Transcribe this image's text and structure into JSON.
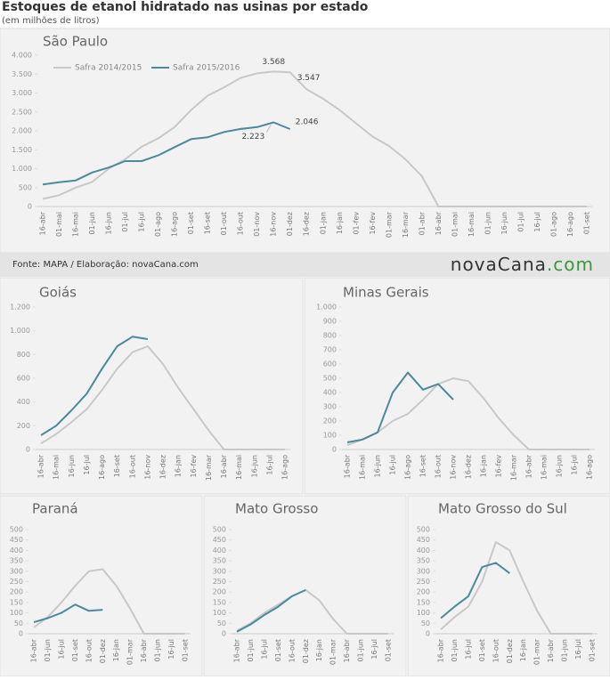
{
  "title": "Estoques de etanol hidratado nas usinas por estado",
  "subtitle": "(em milhões de litros)",
  "source": "Fonte: MAPA / Elaboração: novaCana.com",
  "logo": {
    "name": "novaCana",
    "domain": ".com"
  },
  "chart_data": [
    {
      "type": "line",
      "title": "São Paulo",
      "legend": "upper left",
      "categories": [
        "16-abr",
        "01-mai",
        "16-mai",
        "01-jun",
        "16-jun",
        "01-jul",
        "16-jul",
        "01-ago",
        "16-ago",
        "01-set",
        "16-set",
        "01-out",
        "16-out",
        "01-nov",
        "16-nov",
        "01-dez",
        "16-dez",
        "01-jan",
        "16-jan",
        "01-fev",
        "16-fev",
        "01-mar",
        "16-mar",
        "01-abr",
        "16-abr",
        "01-mai",
        "16-mai",
        "01-jun",
        "16-jun",
        "01-jul",
        "16-jul",
        "01-ago",
        "16-ago",
        "01-set"
      ],
      "series": [
        {
          "name": "Safra 2014/2015",
          "color": "#c8c8c8",
          "values": [
            200,
            300,
            500,
            650,
            1000,
            1250,
            1580,
            1800,
            2100,
            2550,
            2930,
            3150,
            3400,
            3520,
            3568,
            3547,
            3100,
            2850,
            2550,
            2200,
            1850,
            1600,
            1250,
            800,
            0,
            0,
            0,
            0,
            0,
            0,
            0,
            0,
            0,
            0
          ],
          "value_labels": [
            null,
            null,
            null,
            null,
            null,
            null,
            null,
            null,
            null,
            null,
            null,
            null,
            null,
            null,
            "3.568",
            "3.547",
            null,
            null,
            null,
            null,
            null,
            null,
            null,
            null,
            null,
            null,
            null,
            null,
            null,
            null,
            null,
            null,
            null,
            null
          ]
        },
        {
          "name": "Safra 2015/2016",
          "color": "#4a8a9a",
          "values": [
            580,
            640,
            690,
            900,
            1030,
            1200,
            1200,
            1350,
            1570,
            1780,
            1830,
            1970,
            2050,
            2100,
            2223,
            2046,
            null,
            null,
            null,
            null,
            null,
            null,
            null,
            null,
            null,
            null,
            null,
            null,
            null,
            null,
            null,
            null,
            null,
            null
          ],
          "value_labels": [
            null,
            null,
            null,
            null,
            null,
            null,
            null,
            null,
            null,
            null,
            null,
            null,
            null,
            null,
            "2.223",
            "2.046",
            null,
            null,
            null,
            null,
            null,
            null,
            null,
            null,
            null,
            null,
            null,
            null,
            null,
            null,
            null,
            null,
            null,
            null
          ]
        }
      ],
      "ylim": [
        0,
        4000
      ],
      "yticks": [
        0,
        500,
        {
          "value": 1000,
          "label": "1.000"
        },
        {
          "value": 1500,
          "label": "1.500"
        },
        {
          "value": 2000,
          "label": "2.000"
        },
        {
          "value": 2500,
          "label": "2.500"
        },
        {
          "value": 3000,
          "label": "3.000"
        },
        {
          "value": 3500,
          "label": "3.500"
        },
        {
          "value": 4000,
          "label": "4.000"
        }
      ]
    },
    {
      "type": "line",
      "title": "Goiás",
      "categories": [
        "16-abr",
        "16-mai",
        "16-jun",
        "16-jul",
        "16-ago",
        "16-set",
        "16-out",
        "16-nov",
        "16-dez",
        "16-jan",
        "16-fev",
        "16-mar",
        "16-abr",
        "16-mai",
        "16-jun",
        "16-jul",
        "16-ago"
      ],
      "series": [
        {
          "color": "#c8c8c8",
          "values": [
            50,
            130,
            230,
            340,
            500,
            680,
            820,
            870,
            720,
            520,
            340,
            160,
            0,
            0,
            0,
            0,
            0
          ]
        },
        {
          "color": "#4a8a9a",
          "values": [
            120,
            200,
            330,
            470,
            680,
            870,
            950,
            930,
            null,
            null,
            null,
            null,
            null,
            null,
            null,
            null,
            null
          ]
        }
      ],
      "ylim": [
        0,
        1200
      ],
      "yticks": [
        0,
        200,
        400,
        600,
        800,
        {
          "value": 1000,
          "label": "1.000"
        },
        {
          "value": 1200,
          "label": "1.200"
        }
      ]
    },
    {
      "type": "line",
      "title": "Minas Gerais",
      "categories": [
        "16-abr",
        "16-mai",
        "16-jun",
        "16-jul",
        "16-ago",
        "16-set",
        "16-out",
        "16-nov",
        "16-dez",
        "16-jan",
        "16-fev",
        "16-mar",
        "16-abr",
        "16-mai",
        "16-jun",
        "16-jul",
        "16-ago"
      ],
      "series": [
        {
          "color": "#c8c8c8",
          "values": [
            30,
            70,
            120,
            200,
            250,
            350,
            460,
            500,
            480,
            360,
            220,
            100,
            0,
            0,
            0,
            0,
            0
          ]
        },
        {
          "color": "#4a8a9a",
          "values": [
            50,
            70,
            120,
            400,
            540,
            420,
            460,
            350,
            null,
            null,
            null,
            null,
            null,
            null,
            null,
            null,
            null
          ]
        }
      ],
      "ylim": [
        0,
        1000
      ],
      "yticks": [
        0,
        100,
        200,
        300,
        400,
        500,
        600,
        700,
        800,
        900,
        {
          "value": 1000,
          "label": "1.000"
        }
      ]
    },
    {
      "type": "line",
      "title": "Paraná",
      "categories": [
        "16-abr",
        "01-jun",
        "16-jul",
        "01-set",
        "16-out",
        "01-dez",
        "16-jan",
        "01-mar",
        "16-abr",
        "01-jun",
        "16-jul",
        "01-set"
      ],
      "series": [
        {
          "color": "#c8c8c8",
          "values": [
            30,
            80,
            150,
            230,
            300,
            310,
            230,
            120,
            0,
            0,
            0,
            0
          ]
        },
        {
          "color": "#4a8a9a",
          "values": [
            55,
            75,
            100,
            140,
            110,
            115,
            null,
            null,
            null,
            null,
            null,
            null
          ]
        }
      ],
      "ylim": [
        0,
        500
      ],
      "yticks": [
        0,
        50,
        100,
        150,
        200,
        250,
        300,
        350,
        400,
        450,
        500
      ]
    },
    {
      "type": "line",
      "title": "Mato Grosso",
      "categories": [
        "16-abr",
        "01-jun",
        "16-jul",
        "01-set",
        "16-out",
        "01-dez",
        "16-jan",
        "01-mar",
        "16-abr",
        "01-jun",
        "16-jul",
        "01-set"
      ],
      "series": [
        {
          "color": "#c8c8c8",
          "values": [
            15,
            50,
            100,
            140,
            180,
            210,
            160,
            70,
            0,
            0,
            0,
            0
          ]
        },
        {
          "color": "#4a8a9a",
          "values": [
            10,
            45,
            90,
            130,
            180,
            210,
            null,
            null,
            null,
            null,
            null,
            null
          ]
        }
      ],
      "ylim": [
        0,
        500
      ],
      "yticks": [
        0,
        50,
        100,
        150,
        200,
        250,
        300,
        350,
        400,
        450,
        500
      ]
    },
    {
      "type": "line",
      "title": "Mato Grosso do Sul",
      "categories": [
        "16-abr",
        "01-jun",
        "16-jul",
        "01-set",
        "16-out",
        "01-dez",
        "16-jan",
        "01-mar",
        "16-abr",
        "01-jun",
        "16-jul",
        "01-set"
      ],
      "series": [
        {
          "color": "#c8c8c8",
          "values": [
            20,
            80,
            130,
            250,
            440,
            400,
            250,
            110,
            0,
            0,
            0,
            0
          ]
        },
        {
          "color": "#4a8a9a",
          "values": [
            75,
            130,
            180,
            320,
            340,
            290,
            null,
            null,
            null,
            null,
            null,
            null
          ]
        }
      ],
      "ylim": [
        0,
        500
      ],
      "yticks": [
        0,
        50,
        100,
        150,
        200,
        250,
        300,
        350,
        400,
        450,
        500
      ]
    }
  ]
}
